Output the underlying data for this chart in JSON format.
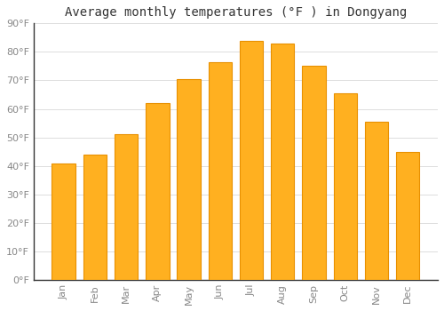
{
  "title": "Average monthly temperatures (°F ) in Dongyang",
  "months": [
    "Jan",
    "Feb",
    "Mar",
    "Apr",
    "May",
    "Jun",
    "Jul",
    "Aug",
    "Sep",
    "Oct",
    "Nov",
    "Dec"
  ],
  "values": [
    41,
    44,
    51,
    62,
    70.5,
    76.5,
    84,
    83,
    75,
    65.5,
    55.5,
    45
  ],
  "bar_color": "#FFB020",
  "bar_edge_color": "#E89000",
  "background_color": "#FFFFFF",
  "grid_color": "#DDDDDD",
  "ylim": [
    0,
    90
  ],
  "yticks": [
    0,
    10,
    20,
    30,
    40,
    50,
    60,
    70,
    80,
    90
  ],
  "ytick_labels": [
    "0°F",
    "10°F",
    "20°F",
    "30°F",
    "40°F",
    "50°F",
    "60°F",
    "70°F",
    "80°F",
    "90°F"
  ],
  "title_fontsize": 10,
  "tick_fontsize": 8,
  "xlabel_rotation": 90,
  "bar_width": 0.75
}
